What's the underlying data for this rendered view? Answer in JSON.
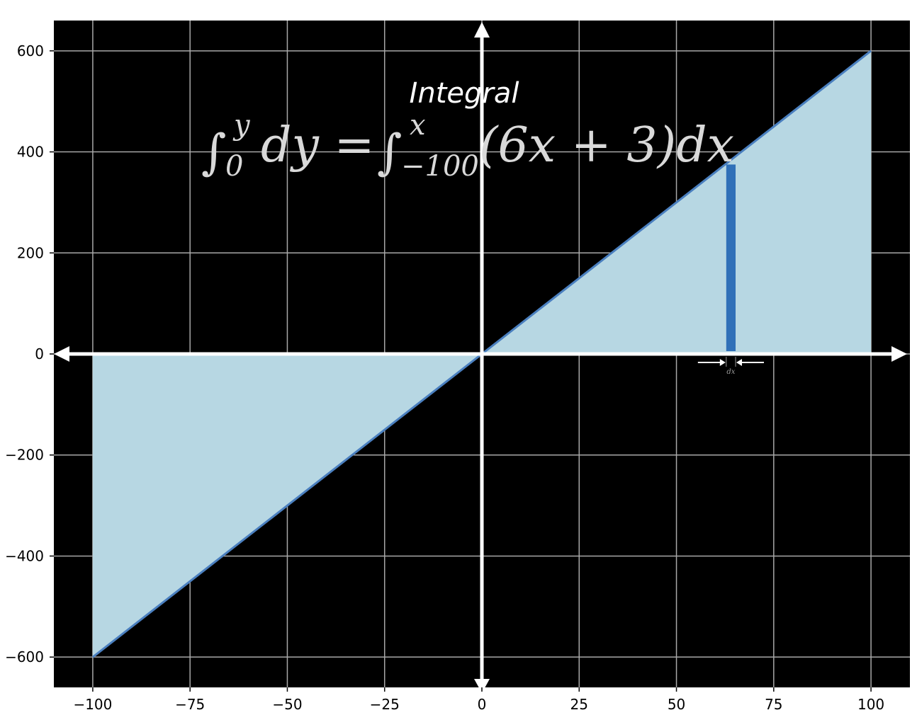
{
  "chart_data": {
    "type": "area",
    "title": "Integral",
    "equation": {
      "lhs_integral": "∫",
      "lhs_lower": "0",
      "lhs_upper": "y",
      "lhs_body": "dy =",
      "rhs_integral": "∫",
      "rhs_lower": "−100",
      "rhs_upper": "x",
      "rhs_body": "(6x + 3)dx"
    },
    "function": "6x + 3",
    "x": [
      -100,
      100
    ],
    "y": [
      -600,
      600
    ],
    "xlim": [
      -110,
      110
    ],
    "ylim": [
      -660,
      660
    ],
    "xticks": [
      -100,
      -75,
      -50,
      -25,
      0,
      25,
      50,
      75,
      100
    ],
    "xtick_labels": [
      "−100",
      "−75",
      "−50",
      "−25",
      "0",
      "25",
      "50",
      "75",
      "100"
    ],
    "yticks": [
      -600,
      -400,
      -200,
      0,
      200,
      400,
      600
    ],
    "ytick_labels": [
      "−600",
      "−400",
      "−200",
      "0",
      "200",
      "400",
      "600"
    ],
    "grid": true,
    "highlight_strip": {
      "x": 64,
      "width": 2.4,
      "height": 375
    },
    "dx_label": "dx",
    "colors": {
      "background": "#000000",
      "fill": "#b7d7e3",
      "line": "#4a7fbf",
      "strip": "#3070b8",
      "grid": "#a8a8a8",
      "axes": "#ffffff"
    }
  }
}
